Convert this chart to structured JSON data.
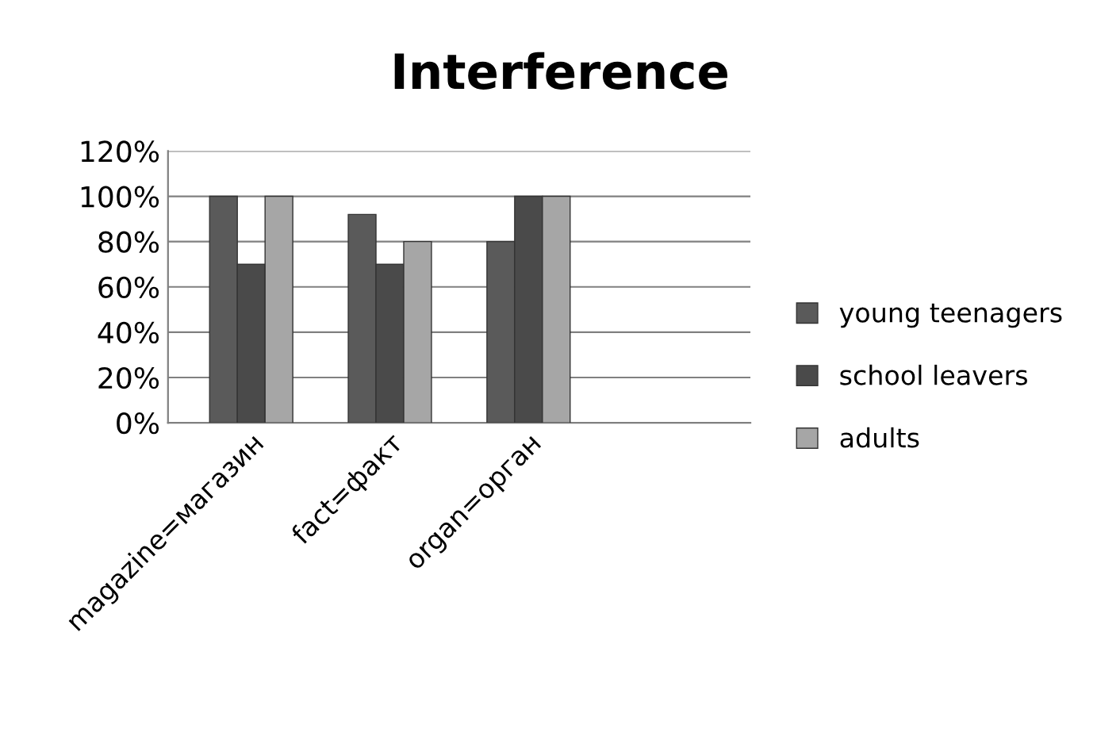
{
  "chart_data": {
    "type": "bar",
    "title": "Interference",
    "categories": [
      "magazine=магазин",
      "fact=факт",
      "organ=орган"
    ],
    "series": [
      {
        "name": "young teenagers",
        "color": "#5a5a5a",
        "values": [
          100,
          92,
          80
        ]
      },
      {
        "name": "school leavers",
        "color": "#4a4a4a",
        "values": [
          70,
          70,
          100
        ]
      },
      {
        "name": "adults",
        "color": "#a6a6a6",
        "values": [
          100,
          80,
          100
        ]
      }
    ],
    "ylim": [
      0,
      120
    ],
    "yticks": [
      {
        "value": 0,
        "label": "0%"
      },
      {
        "value": 20,
        "label": "20%"
      },
      {
        "value": 40,
        "label": "40%"
      },
      {
        "value": 60,
        "label": "60%"
      },
      {
        "value": 80,
        "label": "80%"
      },
      {
        "value": 100,
        "label": "100%"
      },
      {
        "value": 120,
        "label": "120%"
      }
    ],
    "grid": "y",
    "legend": "right"
  }
}
